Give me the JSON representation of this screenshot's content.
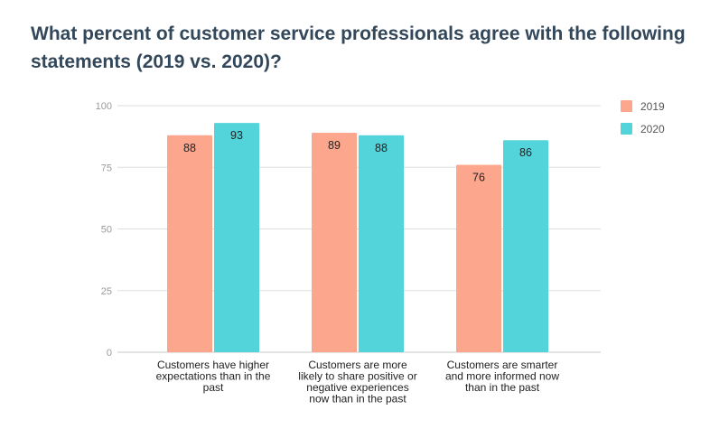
{
  "chart_data": {
    "type": "bar",
    "title": "What percent of customer service professionals agree with the following statements (2019 vs. 2020)?",
    "categories": [
      [
        "Customers have higher",
        "expectations than in the",
        "past"
      ],
      [
        "Customers are more",
        "likely to share positive or",
        "negative experiences",
        "now than in the past"
      ],
      [
        "Customers are smarter",
        "and more informed now",
        "than in the past"
      ]
    ],
    "series": [
      {
        "name": "2019",
        "color": "#fca68d",
        "values": [
          88,
          89,
          76
        ]
      },
      {
        "name": "2020",
        "color": "#53d3da",
        "values": [
          93,
          88,
          86
        ]
      }
    ],
    "ylim": [
      0,
      100
    ],
    "yticks": [
      0,
      25,
      50,
      75,
      100
    ],
    "grid": true,
    "legend": "top-right",
    "xlabel": "",
    "ylabel": ""
  }
}
